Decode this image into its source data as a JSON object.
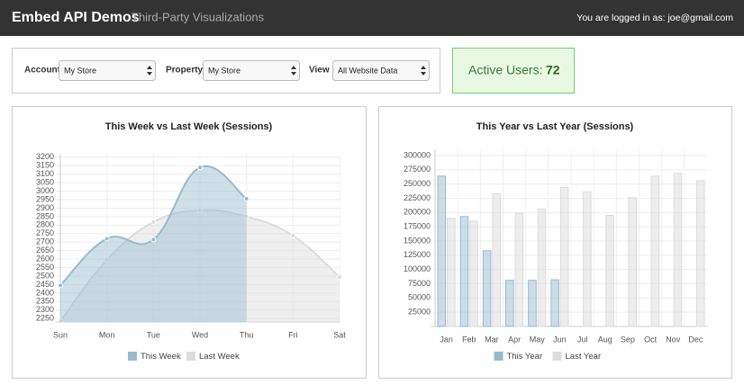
{
  "header": {
    "title": "Embed API Demos",
    "subtitle": "Third-Party Visualizations",
    "user": "You are logged in as: joe@gmail.com"
  },
  "controls": [
    {
      "label": "Account",
      "value": "My Store"
    },
    {
      "label": "Property",
      "value": "My Store"
    },
    {
      "label": "View",
      "value": "All Website Data"
    }
  ],
  "active_users": {
    "label": "Active Users:",
    "value": 72
  },
  "chart_data": [
    {
      "type": "line",
      "title": "This Week vs Last Week (Sessions)",
      "categories": [
        "Sun",
        "Mon",
        "Tue",
        "Wed",
        "Thu",
        "Fri",
        "Sat"
      ],
      "series": [
        {
          "name": "This Week",
          "color": "#97bbcd",
          "values": [
            2445,
            2720,
            2715,
            3140,
            2955,
            null,
            null
          ]
        },
        {
          "name": "Last Week",
          "color": "#dcdcdc",
          "values": [
            2235,
            2595,
            2818,
            2887,
            2850,
            2738,
            2495
          ]
        }
      ],
      "ylim": [
        2230,
        3220
      ],
      "yticks": [
        2250,
        2300,
        2350,
        2400,
        2450,
        2500,
        2550,
        2600,
        2650,
        2700,
        2750,
        2800,
        2850,
        2900,
        2950,
        3000,
        3050,
        3100,
        3150,
        3200
      ],
      "grid": true,
      "legend": "bottom"
    },
    {
      "type": "bar",
      "title": "This Year vs Last Year (Sessions)",
      "categories": [
        "Jan",
        "Feb",
        "Mar",
        "Apr",
        "May",
        "Jun",
        "Jul",
        "Aug",
        "Sep",
        "Oct",
        "Nov",
        "Dec"
      ],
      "series": [
        {
          "name": "This Year",
          "color": "#97bbcd",
          "values": [
            264000,
            193000,
            133000,
            81000,
            81000,
            82000,
            null,
            null,
            null,
            null,
            null,
            null
          ]
        },
        {
          "name": "Last Year",
          "color": "#dcdcdc",
          "values": [
            190000,
            185000,
            233000,
            199000,
            206000,
            244000,
            236000,
            195000,
            226000,
            264000,
            269000,
            256000
          ]
        }
      ],
      "ylim": [
        0,
        310000
      ],
      "yticks": [
        25000,
        50000,
        75000,
        100000,
        125000,
        150000,
        175000,
        200000,
        225000,
        250000,
        275000,
        300000
      ],
      "grid": true,
      "legend": "bottom"
    }
  ]
}
